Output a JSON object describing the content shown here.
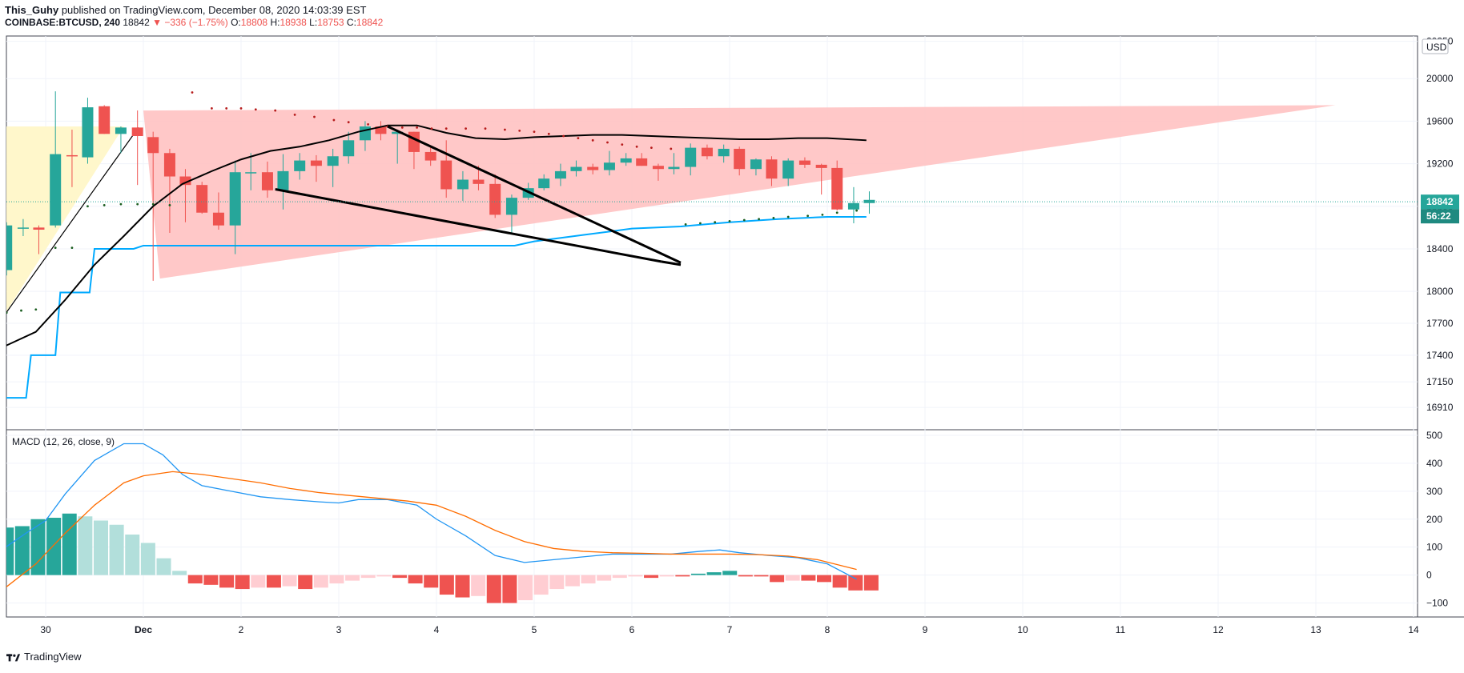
{
  "header": {
    "author": "This_Guhy",
    "published": "published on TradingView.com, December 08, 2020 14:03:39 EST",
    "symbol": "COINBASE:BTCUSD, 240",
    "last": "18842",
    "change": "−336 (−1.75%)",
    "open_label": "O:",
    "open": "18808",
    "high_label": "H:",
    "high": "18938",
    "low_label": "L:",
    "low": "18753",
    "close_label": "C:",
    "close": "18842"
  },
  "footer": {
    "brand": "TradingView",
    "logo_icon": "tradingview-logo-icon"
  },
  "colors": {
    "up": "#26a69a",
    "down": "#ef5350",
    "upLight": "#b2dfdb",
    "downLight": "#ffcdd2",
    "macd": "#2196f3",
    "signal": "#ff6d00",
    "wedge": "#ffc2c2",
    "channel": "#fff7c8",
    "tenkan": "#000000",
    "kijun": "#00aaff"
  },
  "chart_data": [
    {
      "type": "candlestick",
      "title": "",
      "currency": "USD",
      "y_ticks": [
        16910,
        17150,
        17400,
        17700,
        18000,
        18400,
        18800,
        19200,
        19600,
        20000,
        20350
      ],
      "ylim": [
        16700,
        20400
      ],
      "x_ticks": [
        {
          "x": 0,
          "label": "30"
        },
        {
          "x": 1,
          "label": "Dec"
        },
        {
          "x": 2,
          "label": "2"
        },
        {
          "x": 3,
          "label": "3"
        },
        {
          "x": 4,
          "label": "4"
        },
        {
          "x": 5,
          "label": "5"
        },
        {
          "x": 6,
          "label": "6"
        },
        {
          "x": 7,
          "label": "7"
        },
        {
          "x": 8,
          "label": "8"
        },
        {
          "x": 9,
          "label": "9"
        },
        {
          "x": 10,
          "label": "10"
        },
        {
          "x": 11,
          "label": "11"
        },
        {
          "x": 12,
          "label": "12"
        },
        {
          "x": 13,
          "label": "13"
        },
        {
          "x": 14,
          "label": "14"
        }
      ],
      "last_price_label": "18842",
      "countdown_label": "56:22",
      "candles": [
        [
          -0.4,
          18200,
          18650,
          18150,
          18620
        ],
        [
          -0.23,
          18600,
          18680,
          18520,
          18600
        ],
        [
          -0.07,
          18600,
          18620,
          18350,
          18580
        ],
        [
          0.1,
          18620,
          19880,
          18600,
          19290
        ],
        [
          0.27,
          19280,
          19520,
          18980,
          19270
        ],
        [
          0.43,
          19260,
          19820,
          19200,
          19730
        ],
        [
          0.6,
          19740,
          19750,
          19480,
          19480
        ],
        [
          0.77,
          19480,
          19550,
          19300,
          19540
        ],
        [
          0.94,
          19540,
          19700,
          19000,
          19460
        ],
        [
          1.1,
          19450,
          19500,
          18100,
          19300
        ],
        [
          1.27,
          19300,
          19340,
          18550,
          19080
        ],
        [
          1.43,
          19080,
          19150,
          18650,
          19000
        ],
        [
          1.6,
          19000,
          19030,
          18730,
          18740
        ],
        [
          1.77,
          18740,
          18930,
          18580,
          18620
        ],
        [
          1.94,
          18620,
          19230,
          18350,
          19120
        ],
        [
          2.1,
          19120,
          19300,
          18950,
          19120
        ],
        [
          2.27,
          19120,
          19220,
          18880,
          18950
        ],
        [
          2.43,
          18950,
          19290,
          18770,
          19130
        ],
        [
          2.6,
          19130,
          19300,
          19050,
          19230
        ],
        [
          2.77,
          19230,
          19280,
          19030,
          19180
        ],
        [
          2.94,
          19180,
          19340,
          18980,
          19270
        ],
        [
          3.1,
          19270,
          19500,
          19200,
          19420
        ],
        [
          3.27,
          19420,
          19600,
          19320,
          19550
        ],
        [
          3.43,
          19550,
          19600,
          19420,
          19480
        ],
        [
          3.6,
          19480,
          19520,
          19200,
          19500
        ],
        [
          3.77,
          19500,
          19500,
          19150,
          19310
        ],
        [
          3.94,
          19310,
          19350,
          19180,
          19230
        ],
        [
          4.1,
          19230,
          19420,
          18880,
          18960
        ],
        [
          4.27,
          18960,
          19130,
          18850,
          19050
        ],
        [
          4.43,
          19050,
          19180,
          18950,
          19010
        ],
        [
          4.6,
          19010,
          19100,
          18690,
          18720
        ],
        [
          4.77,
          18720,
          18910,
          18550,
          18880
        ],
        [
          4.94,
          18880,
          19020,
          18860,
          18970
        ],
        [
          5.1,
          18970,
          19100,
          18950,
          19060
        ],
        [
          5.27,
          19060,
          19200,
          18990,
          19130
        ],
        [
          5.43,
          19130,
          19230,
          19080,
          19170
        ],
        [
          5.6,
          19170,
          19200,
          19100,
          19140
        ],
        [
          5.77,
          19140,
          19320,
          19090,
          19210
        ],
        [
          5.94,
          19210,
          19300,
          19180,
          19250
        ],
        [
          6.1,
          19250,
          19300,
          19180,
          19180
        ],
        [
          6.27,
          19180,
          19200,
          19040,
          19150
        ],
        [
          6.43,
          19150,
          19300,
          19100,
          19170
        ],
        [
          6.6,
          19170,
          19390,
          19090,
          19350
        ],
        [
          6.77,
          19350,
          19380,
          19240,
          19270
        ],
        [
          6.94,
          19270,
          19380,
          19210,
          19340
        ],
        [
          7.1,
          19340,
          19360,
          19090,
          19150
        ],
        [
          7.27,
          19150,
          19250,
          19090,
          19240
        ],
        [
          7.43,
          19240,
          19270,
          18990,
          19060
        ],
        [
          7.6,
          19060,
          19250,
          18990,
          19230
        ],
        [
          7.77,
          19230,
          19260,
          19160,
          19190
        ],
        [
          7.94,
          19190,
          19200,
          18910,
          19160
        ],
        [
          8.1,
          19160,
          19230,
          18760,
          18770
        ],
        [
          8.27,
          18770,
          18980,
          18640,
          18830
        ],
        [
          8.43,
          18830,
          18940,
          18730,
          18860
        ]
      ],
      "tenkan_line": [
        [
          -0.43,
          17480
        ],
        [
          -0.1,
          17620
        ],
        [
          0.2,
          17920
        ],
        [
          0.5,
          18250
        ],
        [
          0.8,
          18520
        ],
        [
          1.1,
          18800
        ],
        [
          1.4,
          19010
        ],
        [
          1.7,
          19130
        ],
        [
          2.0,
          19240
        ],
        [
          2.3,
          19320
        ],
        [
          2.6,
          19360
        ],
        [
          2.9,
          19420
        ],
        [
          3.2,
          19500
        ],
        [
          3.5,
          19560
        ],
        [
          3.8,
          19560
        ],
        [
          4.1,
          19490
        ],
        [
          4.4,
          19440
        ],
        [
          4.7,
          19430
        ],
        [
          5.0,
          19450
        ],
        [
          5.3,
          19460
        ],
        [
          5.6,
          19470
        ],
        [
          5.9,
          19470
        ],
        [
          6.2,
          19460
        ],
        [
          6.5,
          19450
        ],
        [
          6.8,
          19440
        ],
        [
          7.1,
          19430
        ],
        [
          7.4,
          19430
        ],
        [
          7.7,
          19440
        ],
        [
          8.0,
          19440
        ],
        [
          8.4,
          19420
        ]
      ],
      "kijun_line": [
        [
          -0.43,
          17000
        ],
        [
          -0.2,
          17000
        ],
        [
          -0.15,
          17400
        ],
        [
          0.1,
          17400
        ],
        [
          0.15,
          17990
        ],
        [
          0.45,
          17990
        ],
        [
          0.5,
          18400
        ],
        [
          0.9,
          18400
        ],
        [
          1.0,
          18430
        ],
        [
          1.5,
          18430
        ],
        [
          2.5,
          18430
        ],
        [
          3.5,
          18430
        ],
        [
          4.5,
          18430
        ],
        [
          4.8,
          18430
        ],
        [
          5.0,
          18470
        ],
        [
          5.5,
          18530
        ],
        [
          6.0,
          18590
        ],
        [
          6.5,
          18610
        ],
        [
          7.0,
          18650
        ],
        [
          7.5,
          18680
        ],
        [
          8.0,
          18700
        ],
        [
          8.4,
          18700
        ]
      ],
      "psar_points": [
        [
          -0.4,
          17800
        ],
        [
          -0.25,
          17820
        ],
        [
          -0.1,
          17830
        ],
        [
          0.1,
          18410
        ],
        [
          0.27,
          18410
        ],
        [
          0.43,
          18800
        ],
        [
          0.6,
          18810
        ],
        [
          0.77,
          18820
        ],
        [
          0.94,
          18820
        ],
        [
          1.1,
          18820
        ],
        [
          1.27,
          18810
        ],
        [
          1.5,
          19870
        ],
        [
          1.7,
          19720
        ],
        [
          1.85,
          19720
        ],
        [
          2.0,
          19720
        ],
        [
          2.15,
          19710
        ],
        [
          2.35,
          19700
        ],
        [
          2.55,
          19660
        ],
        [
          2.75,
          19640
        ],
        [
          2.95,
          19610
        ],
        [
          3.1,
          19590
        ],
        [
          3.3,
          19570
        ],
        [
          3.5,
          19550
        ],
        [
          3.65,
          19540
        ],
        [
          3.8,
          19540
        ],
        [
          3.95,
          19530
        ],
        [
          4.1,
          19530
        ],
        [
          4.3,
          19530
        ],
        [
          4.5,
          19530
        ],
        [
          4.7,
          19520
        ],
        [
          4.85,
          19510
        ],
        [
          5.0,
          19500
        ],
        [
          5.15,
          19480
        ],
        [
          5.3,
          19460
        ],
        [
          5.45,
          19440
        ],
        [
          5.6,
          19420
        ],
        [
          5.75,
          19400
        ],
        [
          5.9,
          19380
        ],
        [
          6.05,
          19360
        ],
        [
          6.2,
          19350
        ],
        [
          6.4,
          19340
        ],
        [
          6.55,
          18630
        ],
        [
          6.7,
          18640
        ],
        [
          6.85,
          18650
        ],
        [
          7.0,
          18660
        ],
        [
          7.15,
          18670
        ],
        [
          7.3,
          18680
        ],
        [
          7.45,
          18690
        ],
        [
          7.6,
          18700
        ],
        [
          7.8,
          18710
        ],
        [
          7.95,
          18720
        ],
        [
          8.1,
          18740
        ],
        [
          8.3,
          18760
        ]
      ],
      "wedge_polygon": [
        [
          1.0,
          19700
        ],
        [
          13.2,
          19750
        ],
        [
          1.17,
          18120
        ]
      ],
      "channel_polygon": [
        [
          -0.45,
          19550
        ],
        [
          0.8,
          19550
        ],
        [
          -0.45,
          17740
        ]
      ],
      "channel_line": [
        [
          -0.45,
          17740
        ],
        [
          0.95,
          19540
        ]
      ],
      "trendlines": [
        [
          [
            2.35,
            18960
          ],
          [
            6.3,
            18280
          ]
        ],
        [
          [
            3.5,
            19550
          ],
          [
            6.5,
            18270
          ]
        ],
        [
          [
            6.3,
            18280
          ],
          [
            6.5,
            18250
          ]
        ]
      ]
    },
    {
      "type": "bar_line",
      "title": "MACD (12, 26, close, 9)",
      "y_ticks": [
        -100,
        0,
        100,
        200,
        300,
        400,
        500
      ],
      "ylim": [
        -150,
        520
      ],
      "histogram": [
        170,
        175,
        200,
        205,
        220,
        210,
        195,
        180,
        145,
        115,
        60,
        15,
        -30,
        -35,
        -45,
        -50,
        -45,
        -45,
        -40,
        -50,
        -45,
        -30,
        -20,
        -10,
        -5,
        -10,
        -30,
        -45,
        -70,
        -80,
        -75,
        -100,
        -100,
        -90,
        -70,
        -50,
        -40,
        -30,
        -20,
        -10,
        -5,
        -10,
        -5,
        -5,
        5,
        10,
        15,
        -5,
        -5,
        -25,
        -20,
        -20,
        -25,
        -45,
        -55,
        -55
      ],
      "macd_line": [
        [
          -0.43,
          95
        ],
        [
          -0.2,
          150
        ],
        [
          0.0,
          195
        ],
        [
          0.2,
          290
        ],
        [
          0.5,
          410
        ],
        [
          0.8,
          470
        ],
        [
          1.0,
          470
        ],
        [
          1.2,
          430
        ],
        [
          1.4,
          360
        ],
        [
          1.6,
          320
        ],
        [
          1.9,
          300
        ],
        [
          2.2,
          280
        ],
        [
          2.5,
          270
        ],
        [
          2.8,
          262
        ],
        [
          3.0,
          258
        ],
        [
          3.2,
          270
        ],
        [
          3.5,
          270
        ],
        [
          3.8,
          250
        ],
        [
          4.0,
          200
        ],
        [
          4.3,
          140
        ],
        [
          4.6,
          70
        ],
        [
          4.9,
          45
        ],
        [
          5.2,
          55
        ],
        [
          5.5,
          65
        ],
        [
          5.8,
          75
        ],
        [
          6.1,
          75
        ],
        [
          6.4,
          75
        ],
        [
          6.7,
          85
        ],
        [
          6.9,
          90
        ],
        [
          7.1,
          80
        ],
        [
          7.4,
          70
        ],
        [
          7.7,
          62
        ],
        [
          8.0,
          40
        ],
        [
          8.3,
          -15
        ]
      ],
      "signal_line": [
        [
          -0.43,
          -50
        ],
        [
          -0.1,
          40
        ],
        [
          0.2,
          150
        ],
        [
          0.5,
          250
        ],
        [
          0.8,
          330
        ],
        [
          1.0,
          355
        ],
        [
          1.3,
          370
        ],
        [
          1.6,
          360
        ],
        [
          1.9,
          345
        ],
        [
          2.2,
          330
        ],
        [
          2.5,
          310
        ],
        [
          2.8,
          295
        ],
        [
          3.1,
          285
        ],
        [
          3.4,
          275
        ],
        [
          3.7,
          265
        ],
        [
          4.0,
          250
        ],
        [
          4.3,
          210
        ],
        [
          4.6,
          160
        ],
        [
          4.9,
          120
        ],
        [
          5.2,
          95
        ],
        [
          5.5,
          85
        ],
        [
          5.8,
          80
        ],
        [
          6.1,
          78
        ],
        [
          6.4,
          75
        ],
        [
          6.7,
          75
        ],
        [
          7.0,
          75
        ],
        [
          7.3,
          73
        ],
        [
          7.6,
          68
        ],
        [
          7.9,
          55
        ],
        [
          8.3,
          20
        ]
      ]
    }
  ]
}
